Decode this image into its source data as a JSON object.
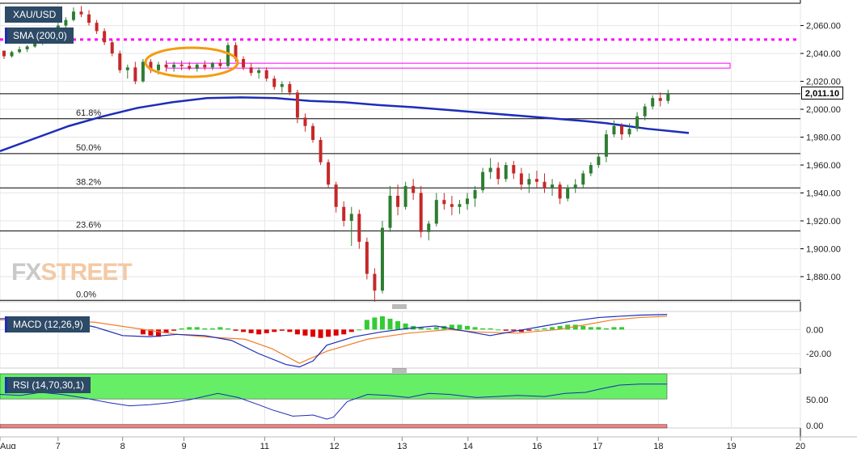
{
  "symbol": "XAU/USD",
  "indicators": {
    "sma_label": "SMA (200,0)",
    "macd_label": "MACD (12,26,9)",
    "rsi_label": "RSI (14,70,30,1)"
  },
  "watermark": {
    "part1": "FX",
    "part2": "STREET"
  },
  "colors": {
    "up_candle": "#2e7d32",
    "down_candle": "#c62828",
    "sma": "#1c2db8",
    "resistance": "#ff00ff",
    "highlight_ellipse": "#f39c12",
    "macd_line": "#1c2db8",
    "signal_line": "#f07f2b",
    "hist_pos": "#33cc33",
    "hist_neg": "#dd0000",
    "rsi_overbought": "#66ee66",
    "rsi_oversold": "#f08080"
  },
  "chart_data": [
    {
      "type": "candlestick",
      "title": "XAU/USD",
      "x_ticks": [
        "Aug",
        "7",
        "8",
        "9",
        "11",
        "12",
        "13",
        "14",
        "16",
        "17",
        "18",
        "19",
        "20"
      ],
      "x_tick_pos": [
        0,
        9,
        19,
        28.5,
        41,
        51.8,
        62.3,
        72.5,
        83.2,
        92.6,
        102,
        113.3,
        124
      ],
      "y_ticks": [
        "2,060.00",
        "2,040.00",
        "2,020.00",
        "2,000.00",
        "1,980.00",
        "1,960.00",
        "1,940.00",
        "1,920.00",
        "1,900.00",
        "1,880.00"
      ],
      "y_tick_vals": [
        2060,
        2040,
        2020,
        2000,
        1980,
        1960,
        1940,
        1920,
        1900,
        1880
      ],
      "ylim": [
        1862,
        2076
      ],
      "last_price": "2,011.10",
      "last_price_val": 2011.1,
      "resistance_level": 2050,
      "resistance_zone": [
        2029.5,
        2033
      ],
      "fibonacci": [
        {
          "label": "61.8%",
          "value": 1993.2
        },
        {
          "label": "50.0%",
          "value": 1968.2
        },
        {
          "label": "38.2%",
          "value": 1943.6
        },
        {
          "label": "23.6%",
          "value": 1912.8
        },
        {
          "label": "0.0%",
          "value": 1863
        }
      ],
      "sma_200": [
        [
          0,
          1970
        ],
        [
          5,
          1979
        ],
        [
          10,
          1988
        ],
        [
          15,
          1995
        ],
        [
          20,
          2001
        ],
        [
          25,
          2005
        ],
        [
          30,
          2008
        ],
        [
          35,
          2008.5
        ],
        [
          40,
          2008
        ],
        [
          45,
          2006
        ],
        [
          50,
          2005
        ],
        [
          55,
          2003
        ],
        [
          60,
          2001.5
        ],
        [
          65,
          1999.5
        ],
        [
          70,
          1997.5
        ],
        [
          75,
          1995.5
        ],
        [
          80,
          1993.5
        ],
        [
          85,
          1991.5
        ],
        [
          88,
          1990
        ],
        [
          91,
          1988
        ],
        [
          94,
          1986
        ],
        [
          97,
          1984.5
        ],
        [
          100,
          1983
        ]
      ],
      "ohlc": [
        [
          0,
          2042,
          2040,
          2036,
          2038
        ],
        [
          1,
          2038,
          2042,
          2037,
          2041
        ],
        [
          2,
          2041,
          2045,
          2040,
          2043
        ],
        [
          3,
          2043,
          2046,
          2041,
          2045
        ],
        [
          4,
          2045,
          2050,
          2044,
          2048
        ],
        [
          5,
          2048,
          2052,
          2046,
          2050
        ],
        [
          6,
          2050,
          2058,
          2049,
          2056
        ],
        [
          7,
          2056,
          2062,
          2054,
          2060
        ],
        [
          8,
          2060,
          2066,
          2058,
          2064
        ],
        [
          9,
          2064,
          2073,
          2063,
          2070
        ],
        [
          10,
          2070,
          2074,
          2066,
          2068
        ],
        [
          11,
          2068,
          2071,
          2060,
          2062
        ],
        [
          12,
          2062,
          2064,
          2054,
          2056
        ],
        [
          13,
          2056,
          2058,
          2046,
          2048
        ],
        [
          14,
          2048,
          2050,
          2038,
          2040
        ],
        [
          15,
          2040,
          2042,
          2026,
          2028
        ],
        [
          16,
          2028,
          2032,
          2022,
          2030
        ],
        [
          17,
          2030,
          2034,
          2018,
          2020
        ],
        [
          18,
          2020,
          2036,
          2019,
          2034
        ],
        [
          19,
          2034,
          2036,
          2026,
          2028
        ],
        [
          20,
          2028,
          2034,
          2025,
          2032
        ],
        [
          21,
          2032,
          2035,
          2027,
          2030
        ],
        [
          22,
          2030,
          2034,
          2027,
          2032
        ],
        [
          23,
          2032,
          2035,
          2028,
          2031
        ],
        [
          24,
          2031,
          2034,
          2028,
          2029
        ],
        [
          25,
          2029,
          2033,
          2027,
          2032
        ],
        [
          26,
          2032,
          2035,
          2028,
          2030
        ],
        [
          27,
          2030,
          2034,
          2028,
          2033
        ],
        [
          28,
          2033,
          2036,
          2029,
          2031
        ],
        [
          29,
          2031,
          2048,
          2030,
          2046
        ],
        [
          30,
          2046,
          2048,
          2034,
          2036
        ],
        [
          31,
          2036,
          2038,
          2028,
          2030
        ],
        [
          32,
          2030,
          2033,
          2024,
          2026
        ],
        [
          33,
          2026,
          2030,
          2022,
          2028
        ],
        [
          34,
          2028,
          2030,
          2020,
          2022
        ],
        [
          35,
          2022,
          2024,
          2014,
          2016
        ],
        [
          36,
          2016,
          2020,
          2012,
          2018
        ],
        [
          37,
          2018,
          2020,
          2010,
          2012
        ],
        [
          38,
          2012,
          2014,
          1990,
          1994
        ],
        [
          39,
          1994,
          1997,
          1984,
          1988
        ],
        [
          40,
          1988,
          1990,
          1976,
          1978
        ],
        [
          41,
          1978,
          1980,
          1960,
          1962
        ],
        [
          42,
          1962,
          1964,
          1944,
          1946
        ],
        [
          43,
          1946,
          1948,
          1926,
          1930
        ],
        [
          44,
          1930,
          1934,
          1916,
          1920
        ],
        [
          45,
          1920,
          1930,
          1902,
          1925
        ],
        [
          46,
          1925,
          1928,
          1900,
          1905
        ],
        [
          47,
          1905,
          1908,
          1878,
          1882
        ],
        [
          48,
          1882,
          1886,
          1862,
          1870
        ],
        [
          49,
          1870,
          1920,
          1868,
          1915
        ],
        [
          50,
          1915,
          1945,
          1912,
          1938
        ],
        [
          51,
          1938,
          1946,
          1924,
          1930
        ],
        [
          52,
          1930,
          1948,
          1928,
          1945
        ],
        [
          53,
          1945,
          1950,
          1935,
          1940
        ],
        [
          54,
          1940,
          1945,
          1908,
          1912
        ],
        [
          55,
          1912,
          1920,
          1906,
          1918
        ],
        [
          56,
          1918,
          1940,
          1916,
          1935
        ],
        [
          57,
          1935,
          1940,
          1928,
          1932
        ],
        [
          58,
          1932,
          1938,
          1924,
          1930
        ],
        [
          59,
          1930,
          1935,
          1925,
          1932
        ],
        [
          60,
          1932,
          1940,
          1928,
          1936
        ],
        [
          61,
          1936,
          1945,
          1930,
          1942
        ],
        [
          62,
          1942,
          1958,
          1940,
          1955
        ],
        [
          63,
          1955,
          1965,
          1950,
          1958
        ],
        [
          64,
          1958,
          1962,
          1946,
          1950
        ],
        [
          65,
          1950,
          1962,
          1948,
          1960
        ],
        [
          66,
          1960,
          1963,
          1950,
          1954
        ],
        [
          67,
          1954,
          1958,
          1942,
          1946
        ],
        [
          68,
          1946,
          1954,
          1940,
          1950
        ],
        [
          69,
          1950,
          1956,
          1944,
          1948
        ],
        [
          70,
          1948,
          1954,
          1940,
          1944
        ],
        [
          71,
          1944,
          1950,
          1938,
          1946
        ],
        [
          72,
          1946,
          1948,
          1932,
          1936
        ],
        [
          73,
          1936,
          1946,
          1934,
          1944
        ],
        [
          74,
          1944,
          1950,
          1940,
          1946
        ],
        [
          75,
          1946,
          1956,
          1944,
          1954
        ],
        [
          76,
          1954,
          1962,
          1952,
          1960
        ],
        [
          77,
          1960,
          1968,
          1958,
          1966
        ],
        [
          78,
          1966,
          1985,
          1962,
          1982
        ],
        [
          79,
          1982,
          1992,
          1980,
          1988
        ],
        [
          80,
          1988,
          1990,
          1978,
          1982
        ],
        [
          81,
          1982,
          1990,
          1980,
          1986
        ],
        [
          82,
          1986,
          1998,
          1984,
          1995
        ],
        [
          83,
          1995,
          2004,
          1992,
          2002
        ],
        [
          84,
          2002,
          2010,
          2000,
          2008
        ],
        [
          85,
          2008,
          2012,
          2002,
          2006
        ],
        [
          86,
          2006,
          2014,
          2004,
          2011
        ]
      ],
      "ohlc_x": [
        0,
        86
      ]
    },
    {
      "type": "line",
      "title": "MACD (12,26,9)",
      "y_ticks": [
        "0.00",
        "-20.00"
      ],
      "y_tick_vals": [
        0,
        -20
      ],
      "ylim": [
        -32,
        15
      ],
      "macd": [
        [
          0,
          9
        ],
        [
          6,
          10
        ],
        [
          10,
          7
        ],
        [
          14,
          2
        ],
        [
          18,
          -5
        ],
        [
          22,
          -6
        ],
        [
          26,
          -4
        ],
        [
          30,
          -5
        ],
        [
          34,
          -9
        ],
        [
          38,
          -20
        ],
        [
          42,
          -29
        ],
        [
          44,
          -31
        ],
        [
          46,
          -26
        ],
        [
          48,
          -13
        ],
        [
          52,
          -6
        ],
        [
          56,
          -2
        ],
        [
          60,
          1
        ],
        [
          64,
          3
        ],
        [
          68,
          -1
        ],
        [
          72,
          -5
        ],
        [
          76,
          -1
        ],
        [
          80,
          3
        ],
        [
          84,
          7
        ],
        [
          88,
          10
        ],
        [
          91,
          11
        ],
        [
          94,
          12
        ],
        [
          98,
          12.5
        ]
      ],
      "signal": [
        [
          0,
          8
        ],
        [
          8,
          8
        ],
        [
          14,
          6
        ],
        [
          20,
          1
        ],
        [
          26,
          -4
        ],
        [
          30,
          -6
        ],
        [
          36,
          -8
        ],
        [
          40,
          -16
        ],
        [
          44,
          -28
        ],
        [
          48,
          -18
        ],
        [
          54,
          -8
        ],
        [
          60,
          -3
        ],
        [
          66,
          0
        ],
        [
          70,
          -2
        ],
        [
          76,
          -3
        ],
        [
          82,
          0
        ],
        [
          86,
          4
        ],
        [
          90,
          8
        ],
        [
          94,
          10
        ],
        [
          98,
          11
        ]
      ],
      "histogram": [
        [
          18,
          -4
        ],
        [
          19,
          -5
        ],
        [
          20,
          -6
        ],
        [
          21,
          -3
        ],
        [
          22,
          -1
        ],
        [
          23,
          1
        ],
        [
          24,
          2
        ],
        [
          25,
          2
        ],
        [
          26,
          1
        ],
        [
          27,
          1
        ],
        [
          28,
          2
        ],
        [
          29,
          1
        ],
        [
          30,
          -1
        ],
        [
          31,
          -2
        ],
        [
          32,
          -3
        ],
        [
          33,
          -4
        ],
        [
          34,
          -3
        ],
        [
          35,
          -2
        ],
        [
          36,
          -1
        ],
        [
          37,
          -2
        ],
        [
          38,
          -4
        ],
        [
          39,
          -5
        ],
        [
          40,
          -6
        ],
        [
          41,
          -7
        ],
        [
          42,
          -6
        ],
        [
          43,
          -5
        ],
        [
          44,
          -4
        ],
        [
          45,
          -2
        ],
        [
          46,
          0
        ],
        [
          47,
          8
        ],
        [
          48,
          10
        ],
        [
          49,
          11
        ],
        [
          50,
          9
        ],
        [
          51,
          7
        ],
        [
          52,
          5
        ],
        [
          53,
          3
        ],
        [
          54,
          2
        ],
        [
          55,
          1
        ],
        [
          56,
          2
        ],
        [
          57,
          3
        ],
        [
          58,
          4
        ],
        [
          59,
          4
        ],
        [
          60,
          3
        ],
        [
          61,
          2
        ],
        [
          62,
          1
        ],
        [
          63,
          1
        ],
        [
          64,
          0
        ],
        [
          65,
          -1
        ],
        [
          66,
          -1
        ],
        [
          67,
          -2
        ],
        [
          68,
          -1
        ],
        [
          69,
          0
        ],
        [
          70,
          1
        ],
        [
          71,
          2
        ],
        [
          72,
          3
        ],
        [
          73,
          4
        ],
        [
          74,
          4
        ],
        [
          75,
          3
        ],
        [
          76,
          2
        ],
        [
          77,
          2
        ],
        [
          78,
          1
        ],
        [
          79,
          2
        ],
        [
          80,
          2
        ]
      ],
      "histogram_x": [
        0,
        86
      ]
    },
    {
      "type": "line",
      "title": "RSI (14,70,30,1)",
      "y_ticks": [
        "50.00",
        "0.00"
      ],
      "y_tick_vals": [
        50,
        0
      ],
      "ylim": [
        -5,
        100
      ],
      "overbought": 70,
      "oversold": 30,
      "rsi": [
        [
          0,
          60
        ],
        [
          3,
          58
        ],
        [
          6,
          64
        ],
        [
          9,
          60
        ],
        [
          12,
          54
        ],
        [
          16,
          44
        ],
        [
          19,
          38
        ],
        [
          22,
          40
        ],
        [
          25,
          44
        ],
        [
          28,
          50
        ],
        [
          32,
          62
        ],
        [
          35,
          54
        ],
        [
          38,
          40
        ],
        [
          40,
          30
        ],
        [
          43,
          18
        ],
        [
          46,
          20
        ],
        [
          48,
          12
        ],
        [
          49,
          16
        ],
        [
          51,
          46
        ],
        [
          54,
          60
        ],
        [
          57,
          58
        ],
        [
          60,
          54
        ],
        [
          63,
          62
        ],
        [
          66,
          60
        ],
        [
          70,
          54
        ],
        [
          73,
          56
        ],
        [
          76,
          58
        ],
        [
          80,
          56
        ],
        [
          83,
          62
        ],
        [
          86,
          64
        ],
        [
          88,
          70
        ],
        [
          91,
          78
        ],
        [
          94,
          80
        ],
        [
          98,
          80
        ]
      ],
      "rsi_x": [
        0,
        98
      ]
    }
  ]
}
